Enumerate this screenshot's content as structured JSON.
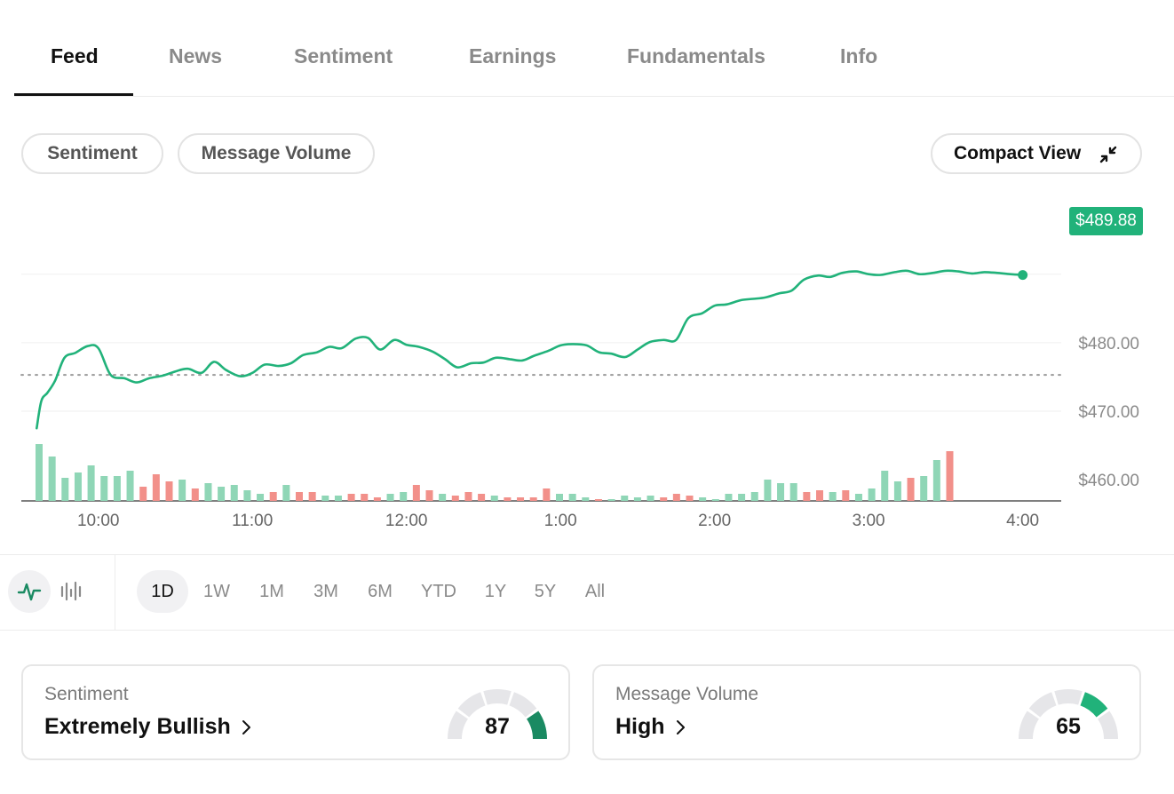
{
  "tabs": [
    {
      "label": "Feed",
      "active": true
    },
    {
      "label": "News"
    },
    {
      "label": "Sentiment"
    },
    {
      "label": "Earnings"
    },
    {
      "label": "Fundamentals"
    },
    {
      "label": "Info"
    }
  ],
  "toolbar": {
    "sentiment_label": "Sentiment",
    "volume_label": "Message Volume",
    "compact_label": "Compact View",
    "compact_icon": "compress-arrows-icon"
  },
  "colors": {
    "up": "#21b27a",
    "volume_up": "#8fd6b6",
    "volume_down": "#f2908a",
    "gauge_dark": "#1a8a62",
    "gauge_light": "#21b27a",
    "gauge_track": "#e6e6e9"
  },
  "chart_data": {
    "type": "line",
    "current_price_label": "$489.88",
    "y_ticks": [
      "$480.00",
      "$470.00",
      "$460.00"
    ],
    "y_tick_values": [
      480,
      470,
      460
    ],
    "ylim": [
      456.9,
      502.8
    ],
    "previous_close": 475.3,
    "x_ticks": [
      "10:00",
      "11:00",
      "12:00",
      "1:00",
      "2:00",
      "3:00",
      "4:00"
    ],
    "x_tick_hours": [
      10,
      11,
      12,
      13,
      14,
      15,
      16
    ],
    "xlim": [
      9.5,
      16.25
    ],
    "series": [
      {
        "x": [
          9.6,
          9.63,
          9.67,
          9.72,
          9.78,
          9.85,
          9.93,
          10.0,
          10.08,
          10.17,
          10.25,
          10.33,
          10.42,
          10.5,
          10.58,
          10.67,
          10.75,
          10.83,
          10.92,
          11.0,
          11.08,
          11.17,
          11.25,
          11.33,
          11.42,
          11.5,
          11.58,
          11.67,
          11.75,
          11.83,
          11.92,
          12.0,
          12.08,
          12.17,
          12.25,
          12.33,
          12.42,
          12.5,
          12.58,
          12.67,
          12.75,
          12.83,
          12.92,
          13.0,
          13.08,
          13.17,
          13.25,
          13.33,
          13.42,
          13.5,
          13.58,
          13.67,
          13.75,
          13.83,
          13.92,
          14.0,
          14.08,
          14.17,
          14.25,
          14.33,
          14.42,
          14.5,
          14.58,
          14.67,
          14.75,
          14.83,
          14.92,
          15.0,
          15.08,
          15.17,
          15.25,
          15.33,
          15.42,
          15.5,
          15.58,
          15.67,
          15.75,
          15.83,
          15.92,
          16.0
        ],
        "y": [
          467.5,
          471.5,
          472.7,
          474.5,
          477.8,
          478.5,
          479.5,
          479.2,
          475.3,
          474.8,
          474.2,
          474.8,
          475.2,
          475.8,
          476.2,
          475.6,
          477.2,
          476.0,
          475.1,
          475.6,
          476.8,
          476.6,
          477.0,
          478.2,
          478.6,
          479.4,
          479.2,
          480.6,
          480.7,
          479.0,
          480.4,
          479.7,
          479.4,
          478.7,
          477.6,
          476.4,
          477.0,
          477.1,
          477.8,
          477.6,
          477.4,
          478.1,
          478.8,
          479.6,
          479.8,
          479.6,
          478.6,
          478.4,
          477.9,
          479.0,
          480.1,
          480.4,
          480.4,
          483.6,
          484.3,
          485.4,
          485.6,
          486.2,
          486.4,
          486.6,
          487.2,
          487.6,
          489.2,
          489.8,
          489.6,
          490.2,
          490.4,
          490.0,
          489.9,
          490.3,
          490.5,
          490.0,
          490.2,
          490.5,
          490.4,
          490.1,
          490.3,
          490.2,
          490.0,
          489.88
        ]
      }
    ],
    "volume": {
      "values": [
        64,
        50,
        26,
        32,
        40,
        28,
        28,
        34,
        16,
        30,
        22,
        24,
        14,
        20,
        16,
        18,
        12,
        8,
        10,
        18,
        10,
        10,
        6,
        6,
        8,
        8,
        4,
        8,
        10,
        18,
        12,
        8,
        6,
        10,
        8,
        6,
        4,
        4,
        4,
        14,
        8,
        8,
        4,
        2,
        2,
        6,
        4,
        6,
        4,
        8,
        6,
        4,
        2,
        8,
        8,
        10,
        24,
        20,
        20,
        10,
        12,
        10,
        12,
        8,
        14,
        34,
        22,
        26,
        28,
        46,
        56
      ],
      "up": [
        true,
        true,
        true,
        true,
        true,
        true,
        true,
        true,
        false,
        false,
        false,
        true,
        false,
        true,
        true,
        true,
        true,
        true,
        false,
        true,
        false,
        false,
        true,
        true,
        false,
        false,
        false,
        true,
        true,
        false,
        false,
        true,
        false,
        false,
        false,
        true,
        false,
        false,
        false,
        false,
        true,
        true,
        true,
        false,
        true,
        true,
        true,
        true,
        false,
        false,
        false,
        true,
        true,
        true,
        true,
        true,
        true,
        true,
        true,
        false,
        false,
        true,
        false,
        true,
        true,
        true,
        true,
        false,
        true,
        true,
        false
      ]
    },
    "grid": true
  },
  "ranges": [
    {
      "label": "1D",
      "active": true
    },
    {
      "label": "1W"
    },
    {
      "label": "1M"
    },
    {
      "label": "3M"
    },
    {
      "label": "6M"
    },
    {
      "label": "YTD"
    },
    {
      "label": "1Y"
    },
    {
      "label": "5Y"
    },
    {
      "label": "All"
    }
  ],
  "chart_type_icons": [
    "line-chart-icon",
    "bar-chart-icon"
  ],
  "cards": {
    "sentiment": {
      "label": "Sentiment",
      "value": "Extremely Bullish",
      "score": "87",
      "score_value": 87
    },
    "volume": {
      "label": "Message Volume",
      "value": "High",
      "score": "65",
      "score_value": 65
    }
  }
}
